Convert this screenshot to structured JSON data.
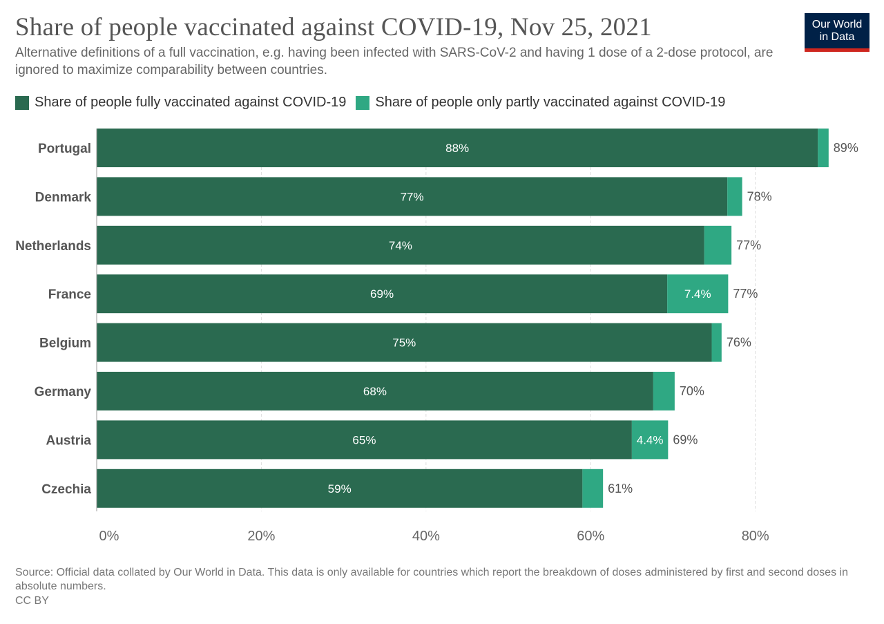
{
  "title": "Share of people vaccinated against COVID-19, Nov 25, 2021",
  "subtitle": "Alternative definitions of a full vaccination, e.g. having been infected with SARS-CoV-2 and having 1 dose of a 2-dose protocol, are ignored to maximize comparability between countries.",
  "logo": {
    "line1": "Our World",
    "line2": "in Data"
  },
  "source": "Source: Official data collated by Our World in Data. This data is only available for countries which report the breakdown of doses administered by first and second doses in absolute numbers.",
  "license": "CC BY",
  "colors": {
    "fully": "#2a6a50",
    "partly": "#2fa883",
    "grid": "#dddddd"
  },
  "chart_data": {
    "type": "bar",
    "orientation": "horizontal",
    "stacked": true,
    "title": "Share of people vaccinated against COVID-19, Nov 25, 2021",
    "categories": [
      "Portugal",
      "Denmark",
      "Netherlands",
      "France",
      "Belgium",
      "Germany",
      "Austria",
      "Czechia"
    ],
    "series": [
      {
        "name": "Share of people fully vaccinated against COVID-19",
        "values": [
          87.6,
          76.6,
          73.8,
          69.3,
          74.7,
          67.6,
          65.0,
          59.0
        ],
        "labels": [
          "88%",
          "77%",
          "74%",
          "69%",
          "75%",
          "68%",
          "65%",
          "59%"
        ],
        "color": "#2a6a50"
      },
      {
        "name": "Share of people only partly vaccinated against COVID-19",
        "values": [
          1.3,
          1.8,
          3.3,
          7.4,
          1.2,
          2.6,
          4.4,
          2.5
        ],
        "labels": [
          "",
          "",
          "",
          "7.4%",
          "",
          "",
          "4.4%",
          ""
        ],
        "color": "#2fa883"
      }
    ],
    "totals": [
      "89%",
      "78%",
      "77%",
      "77%",
      "76%",
      "70%",
      "69%",
      "61%"
    ],
    "xlim": [
      0,
      89
    ],
    "xticks": [
      0,
      20,
      40,
      60,
      80
    ],
    "xtick_labels": [
      "0%",
      "20%",
      "40%",
      "60%",
      "80%"
    ],
    "grid": true,
    "legend": "top-left"
  }
}
